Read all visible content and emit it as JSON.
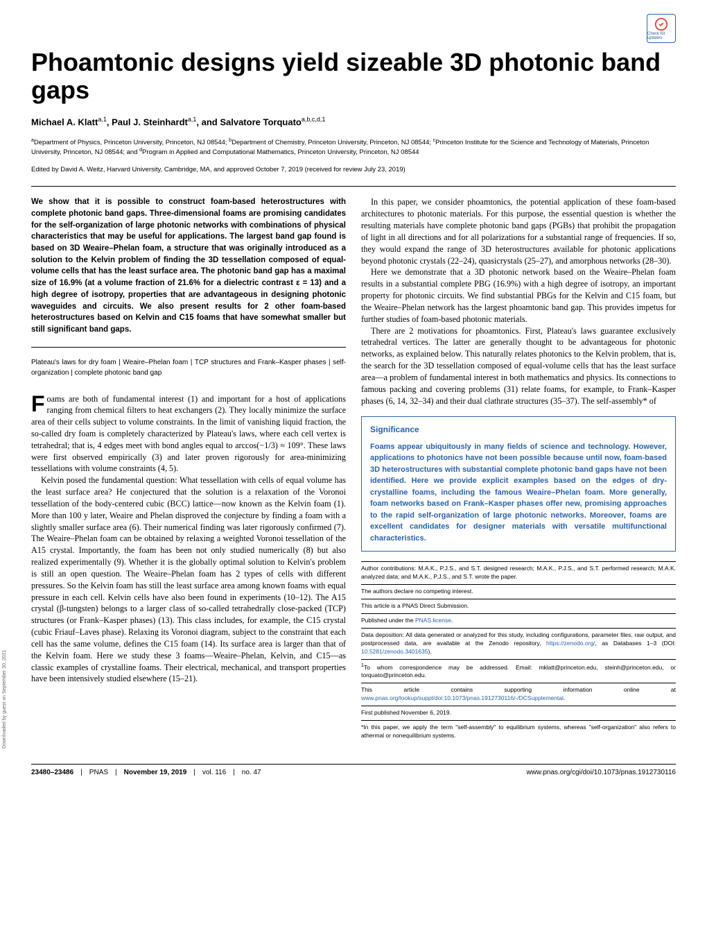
{
  "checkUpdates": "Check for updates",
  "title": "Phoamtonic designs yield sizeable 3D photonic band gaps",
  "authors": "Michael A. Klatt<sup>a,1</sup>, Paul J. Steinhardt<sup>a,1</sup>, and Salvatore Torquato<sup>a,b,c,d,1</sup>",
  "affiliations": "<sup>a</sup>Department of Physics, Princeton University, Princeton, NJ 08544; <sup>b</sup>Department of Chemistry, Princeton University, Princeton, NJ 08544; <sup>c</sup>Princeton Institute for the Science and Technology of Materials, Princeton University, Princeton, NJ 08544; and <sup>d</sup>Program in Applied and Computational Mathematics, Princeton University, Princeton, NJ 08544",
  "edited": "Edited by David A. Weitz, Harvard University, Cambridge, MA, and approved October 7, 2019 (received for review July 23, 2019)",
  "abstract": "We show that it is possible to construct foam-based heterostructures with complete photonic band gaps. Three-dimensional foams are promising candidates for the self-organization of large photonic networks with combinations of physical characteristics that may be useful for applications. The largest band gap found is based on 3D Weaire–Phelan foam, a structure that was originally introduced as a solution to the Kelvin problem of finding the 3D tessellation composed of equal-volume cells that has the least surface area. The photonic band gap has a maximal size of 16.9% (at a volume fraction of 21.6% for a dielectric contrast ε = 13) and a high degree of isotropy, properties that are advantageous in designing photonic waveguides and circuits. We also present results for 2 other foam-based heterostructures based on Kelvin and C15 foams that have somewhat smaller but still significant band gaps.",
  "keywords": "Plateau's laws for dry foam | Weaire–Phelan foam | TCP structures and Frank–Kasper phases | self-organization | complete photonic band gap",
  "col1p1": "oams are both of fundamental interest (1) and important for a host of applications ranging from chemical filters to heat exchangers (2). They locally minimize the surface area of their cells subject to volume constraints. In the limit of vanishing liquid fraction, the so-called dry foam is completely characterized by Plateau's laws, where each cell vertex is tetrahedral; that is, 4 edges meet with bond angles equal to arccos(−1/3) ≈ 109°. These laws were first observed empirically (3) and later proven rigorously for area-minimizing tessellations with volume constraints (4, 5).",
  "col1p2": "Kelvin posed the fundamental question: What tessellation with cells of equal volume has the least surface area? He conjectured that the solution is a relaxation of the Voronoi tessellation of the body-centered cubic (BCC) lattice—now known as the Kelvin foam (1). More than 100 y later, Weaire and Phelan disproved the conjecture by finding a foam with a slightly smaller surface area (6). Their numerical finding was later rigorously confirmed (7). The Weaire–Phelan foam can be obtained by relaxing a weighted Voronoi tessellation of the A15 crystal. Importantly, the foam has been not only studied numerically (8) but also realized experimentally (9). Whether it is the globally optimal solution to Kelvin's problem is still an open question. The Weaire–Phelan foam has 2 types of cells with different pressures. So the Kelvin foam has still the least surface area among known foams with equal pressure in each cell. Kelvin cells have also been found in experiments (10–12). The A15 crystal (β-tungsten) belongs to a larger class of so-called tetrahedrally close-packed (TCP) structures (or Frank–Kasper phases) (13). This class includes, for example, the C15 crystal (cubic Friauf–Laves phase). Relaxing its Voronoi diagram, subject to the constraint that each cell has the same volume, defines the C15 foam (14). Its surface area is larger than that of the Kelvin foam. Here we study these 3 foams—Weaire–Phelan, Kelvin, and C15—as classic examples of crystalline foams. Their electrical, mechanical, and transport properties have been intensively studied elsewhere (15–21).",
  "col2p1": "In this paper, we consider phoamtonics, the potential application of these foam-based architectures to photonic materials. For this purpose, the essential question is whether the resulting materials have complete photonic band gaps (PGBs) that prohibit the propagation of light in all directions and for all polarizations for a substantial range of frequencies. If so, they would expand the range of 3D heterostructures available for photonic applications beyond photonic crystals (22–24), quasicrystals (25–27), and amorphous networks (28–30).",
  "col2p2": "Here we demonstrate that a 3D photonic network based on the Weaire–Phelan foam results in a substantial complete PBG (16.9%) with a high degree of isotropy, an important property for photonic circuits. We find substantial PBGs for the Kelvin and C15 foam, but the Weaire–Phelan network has the largest phoamtonic band gap. This provides impetus for further studies of foam-based photonic materials.",
  "col2p3": "There are 2 motivations for phoamtonics. First, Plateau's laws guarantee exclusively tetrahedral vertices. The latter are generally thought to be advantageous for photonic networks, as explained below. This naturally relates photonics to the Kelvin problem, that is, the search for the 3D tessellation composed of equal-volume cells that has the least surface area—a problem of fundamental interest in both mathematics and physics. Its connections to famous packing and covering problems (31) relate foams, for example, to Frank–Kasper phases (6, 14, 32–34) and their dual clathrate structures (35–37). The self-assembly* of",
  "significanceTitle": "Significance",
  "significanceText": "Foams appear ubiquitously in many fields of science and technology. However, applications to photonics have not been possible because until now, foam-based 3D heterostructures with substantial complete photonic band gaps have not been identified. Here we provide explicit examples based on the edges of dry-crystalline foams, including the famous Weaire–Phelan foam. More generally, foam networks based on Frank–Kasper phases offer new, promising approaches to the rapid self-organization of large photonic networks. Moreover, foams are excellent candidates for designer materials with versatile multifunctional characteristics.",
  "meta1": "Author contributions: M.A.K., P.J.S., and S.T. designed research; M.A.K., P.J.S., and S.T. performed research; M.A.K. analyzed data; and M.A.K., P.J.S., and S.T. wrote the paper.",
  "meta2": "The authors declare no competing interest.",
  "meta3": "This article is a PNAS Direct Submission.",
  "meta4": "Published under the <a>PNAS license</a>.",
  "meta5": "Data deposition: All data generated or analyzed for this study, including configurations, parameter files, raw output, and postprocessed data, are available at the Zenodo repository, <a>https://zenodo.org/</a>, as Databases 1–3 (DOI: <a>10.5281/zenodo.3401635</a>).",
  "meta6": "<sup>1</sup>To whom correspondence may be addressed. Email: mklatt@princeton.edu, steinh@princeton.edu, or torquato@princeton.edu.",
  "meta7": "This article contains supporting information online at <a>www.pnas.org/lookup/suppl/doi:10.1073/pnas.1912730116/-/DCSupplemental</a>.",
  "meta8": "First published November 6, 2019.",
  "meta9": "*In this paper, we apply the term \"self-assembly\" to equilibrium systems, whereas \"self-organization\" also refers to athermal or nonequilibrium systems.",
  "footerPages": "23480–23486",
  "footerPNAS": "PNAS",
  "footerDate": "November 19, 2019",
  "footerVol": "vol. 116",
  "footerNo": "no. 47",
  "footerURL": "www.pnas.org/cgi/doi/10.1073/pnas.1912730116",
  "sideways": "Downloaded by guest on September 30, 2021",
  "colors": {
    "brand": "#2962a8",
    "text": "#000000",
    "bg": "#ffffff"
  }
}
